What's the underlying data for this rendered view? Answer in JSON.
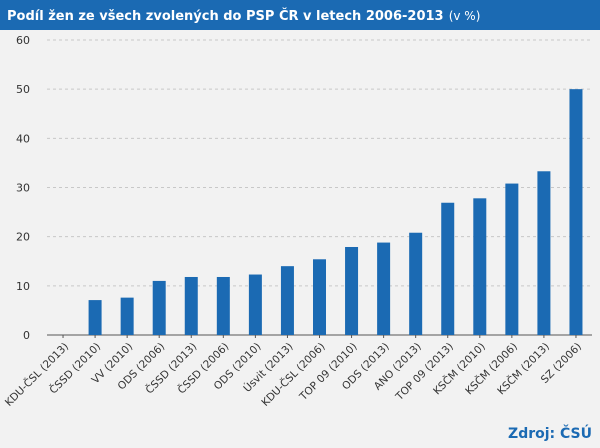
{
  "chart_data": {
    "type": "bar",
    "title": "Podíl žen ze všech zvolených do PSP ČR v letech 2006-2013",
    "title_unit": "(v %)",
    "xlabel": "",
    "ylabel": "",
    "categories": [
      "KDU-ČSL (2013)",
      "ČSSD (2010)",
      "VV (2010)",
      "ODS (2006)",
      "ČSSD (2013)",
      "ČSSD (2006)",
      "ODS (2010)",
      "Úsvit (2013)",
      "KDU-ČSL (2006)",
      "TOP 09 (2010)",
      "ODS (2013)",
      "ANO (2013)",
      "TOP 09 (2013)",
      "KSČM (2010)",
      "KSČM (2006)",
      "KSČM (2013)",
      "SZ (2006)"
    ],
    "values": [
      0,
      7.1,
      7.6,
      11.0,
      11.8,
      11.8,
      12.3,
      14.0,
      15.4,
      17.9,
      18.8,
      20.8,
      26.9,
      27.8,
      30.8,
      33.3,
      50.0
    ],
    "yticks": [
      "0",
      "10",
      "20",
      "30",
      "40",
      "50",
      "60"
    ],
    "ylim": [
      0,
      60
    ],
    "grid": true,
    "bar_color": "#1b6ab3"
  },
  "source": "Zdroj: ČSÚ"
}
